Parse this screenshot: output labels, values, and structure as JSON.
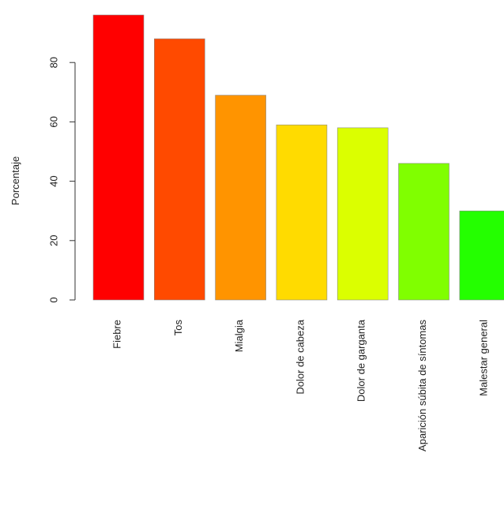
{
  "chart_data": {
    "type": "bar",
    "title": "",
    "xlabel": "",
    "ylabel": "Porcentaje",
    "categories": [
      "Fiebre",
      "Tos",
      "Mialgia",
      "Dolor de cabeza",
      "Dolor de garganta",
      "Aparición súbita de síntomas",
      "Malestar general"
    ],
    "values": [
      96,
      88,
      69,
      59,
      58,
      46,
      30
    ],
    "colors": [
      "#FF0000",
      "#FF4A00",
      "#FF9400",
      "#FFDB00",
      "#DBFF00",
      "#80FF00",
      "#24FF00"
    ],
    "yticks": [
      0,
      20,
      40,
      60,
      80
    ],
    "ylim": [
      0,
      96
    ],
    "grid": false,
    "legend": "none"
  }
}
